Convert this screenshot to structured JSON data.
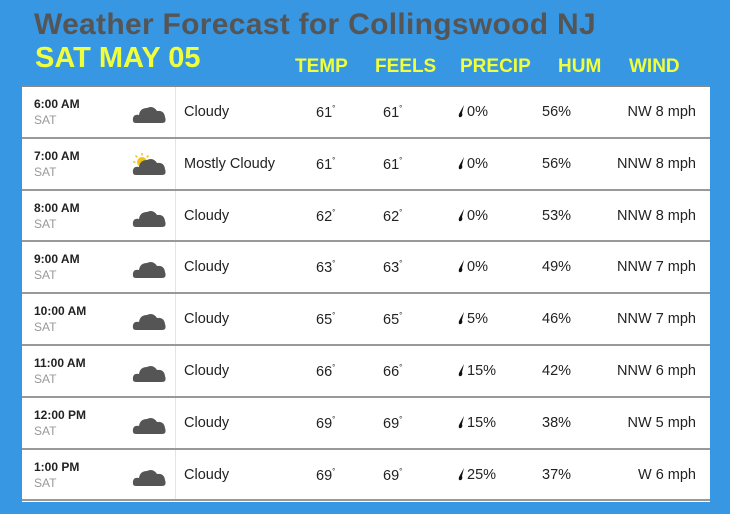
{
  "title": "Weather Forecast for Collingswood NJ",
  "date": "SAT MAY 05",
  "headers": {
    "temp": "TEMP",
    "feels": "FEELS",
    "precip": "PRECIP",
    "hum": "HUM",
    "wind": "WIND"
  },
  "colors": {
    "background": "#3797e3",
    "header_text": "#f0ff3c",
    "title_text": "#555555"
  },
  "rows": [
    {
      "time": "6:00 AM",
      "day": "SAT",
      "icon": "cloud-icon",
      "condition": "Cloudy",
      "temp": "61",
      "feels": "61",
      "precip": "0%",
      "hum": "56%",
      "wind": "NW 8 mph"
    },
    {
      "time": "7:00 AM",
      "day": "SAT",
      "icon": "partly-sunny-cloud-icon",
      "condition": "Mostly Cloudy",
      "temp": "61",
      "feels": "61",
      "precip": "0%",
      "hum": "56%",
      "wind": "NNW 8 mph"
    },
    {
      "time": "8:00 AM",
      "day": "SAT",
      "icon": "cloud-icon",
      "condition": "Cloudy",
      "temp": "62",
      "feels": "62",
      "precip": "0%",
      "hum": "53%",
      "wind": "NNW 8 mph"
    },
    {
      "time": "9:00 AM",
      "day": "SAT",
      "icon": "cloud-icon",
      "condition": "Cloudy",
      "temp": "63",
      "feels": "63",
      "precip": "0%",
      "hum": "49%",
      "wind": "NNW 7 mph"
    },
    {
      "time": "10:00 AM",
      "day": "SAT",
      "icon": "cloud-icon",
      "condition": "Cloudy",
      "temp": "65",
      "feels": "65",
      "precip": "5%",
      "hum": "46%",
      "wind": "NNW 7 mph"
    },
    {
      "time": "11:00 AM",
      "day": "SAT",
      "icon": "cloud-icon",
      "condition": "Cloudy",
      "temp": "66",
      "feels": "66",
      "precip": "15%",
      "hum": "42%",
      "wind": "NNW 6 mph"
    },
    {
      "time": "12:00 PM",
      "day": "SAT",
      "icon": "cloud-icon",
      "condition": "Cloudy",
      "temp": "69",
      "feels": "69",
      "precip": "15%",
      "hum": "38%",
      "wind": "NW 5 mph"
    },
    {
      "time": "1:00 PM",
      "day": "SAT",
      "icon": "cloud-icon",
      "condition": "Cloudy",
      "temp": "69",
      "feels": "69",
      "precip": "25%",
      "hum": "37%",
      "wind": "W 6 mph"
    }
  ]
}
